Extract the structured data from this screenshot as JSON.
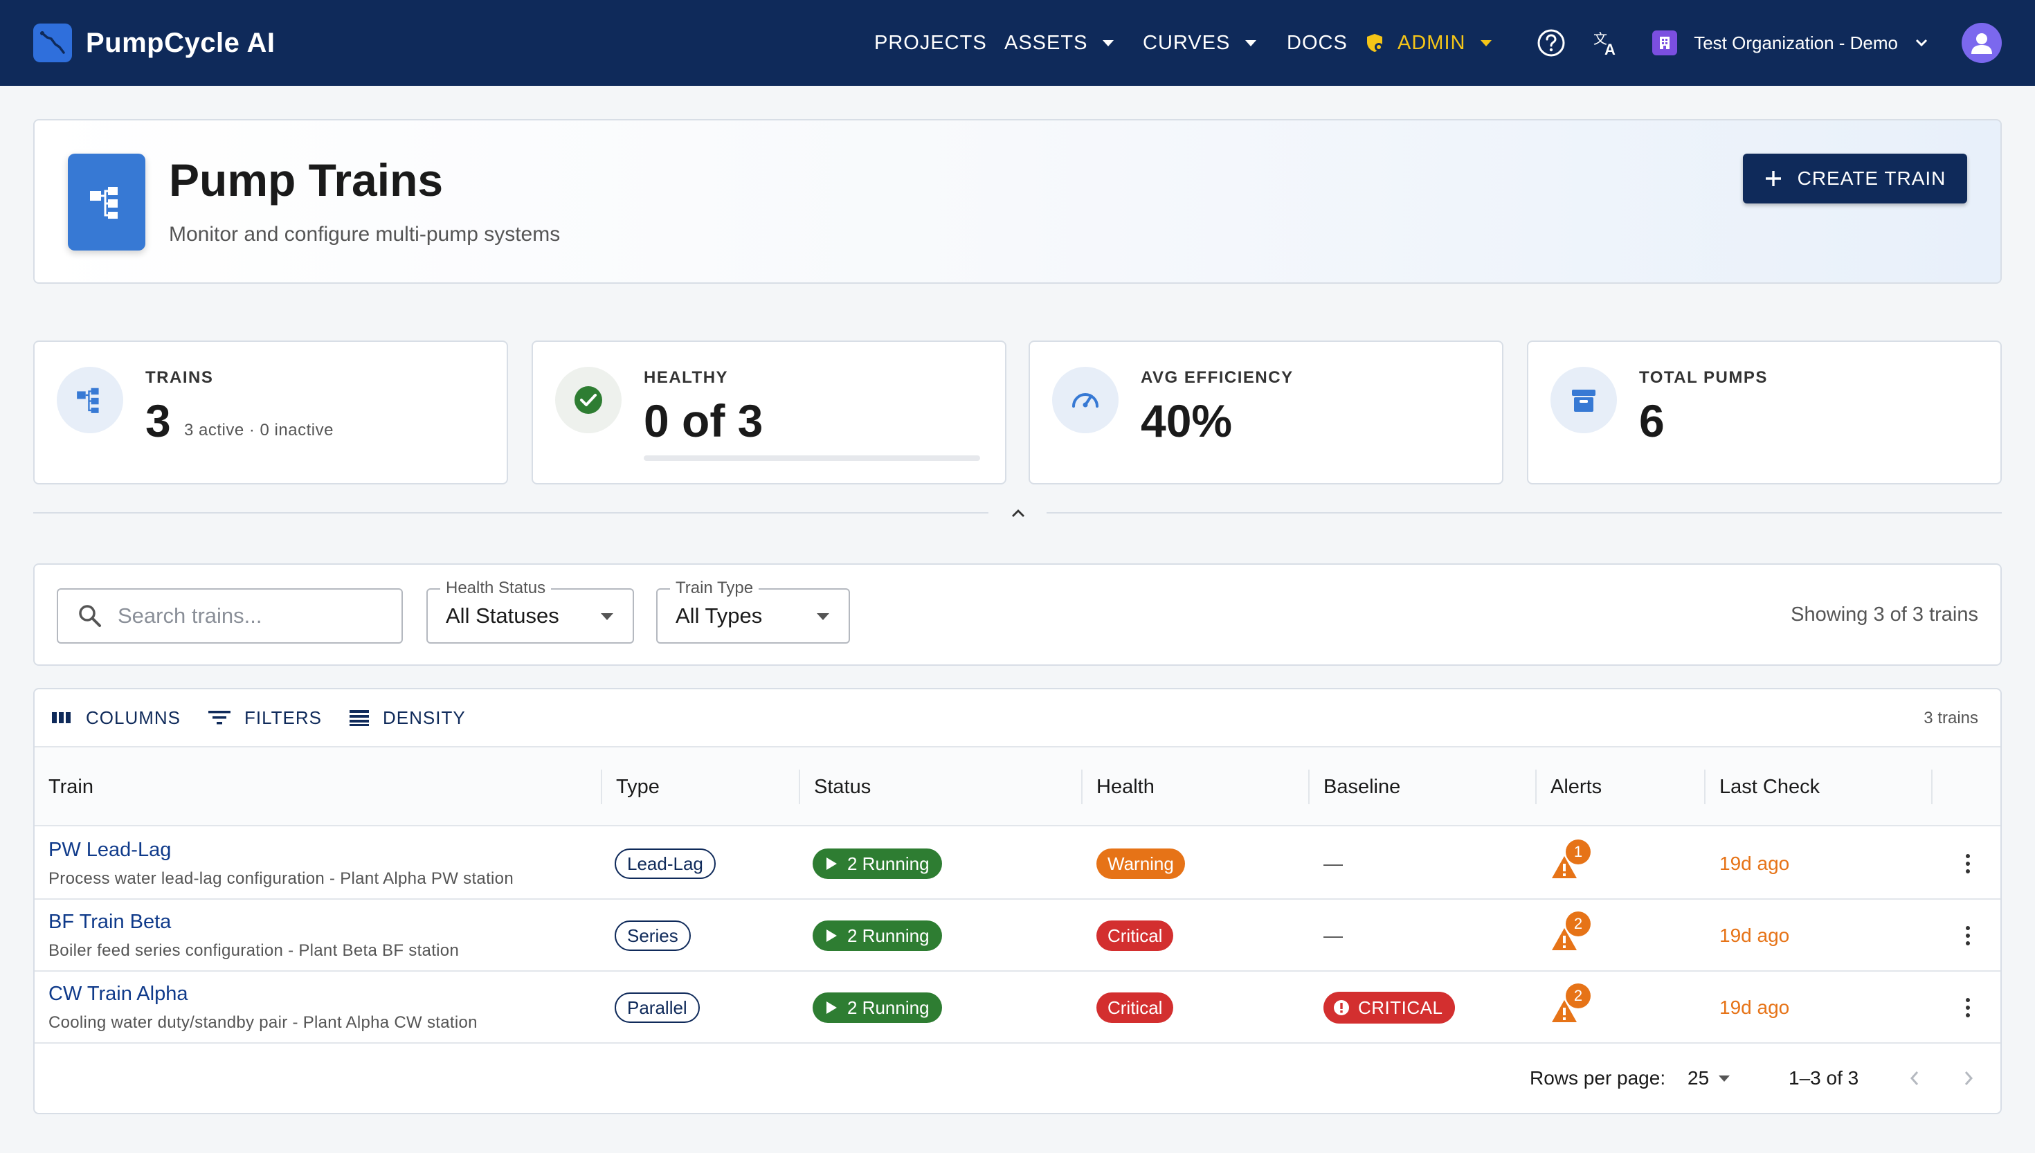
{
  "navbar": {
    "brand": "PumpCycle AI",
    "links": [
      {
        "label": "PROJECTS"
      },
      {
        "label": "ASSETS"
      },
      {
        "label": "CURVES"
      },
      {
        "label": "DOCS"
      },
      {
        "label": "ADMIN"
      }
    ],
    "organization": "Test Organization - Demo"
  },
  "header": {
    "title": "Pump Trains",
    "subtitle": "Monitor and configure multi-pump systems",
    "create_button": "CREATE TRAIN"
  },
  "stats": {
    "trains": {
      "label": "TRAINS",
      "value": "3",
      "sub": "3 active · 0 inactive"
    },
    "healthy": {
      "label": "HEALTHY",
      "value": "0 of 3",
      "fraction": 0
    },
    "efficiency": {
      "label": "AVG EFFICIENCY",
      "value": "40%"
    },
    "pumps": {
      "label": "TOTAL PUMPS",
      "value": "6"
    }
  },
  "filters": {
    "search_placeholder": "Search trains...",
    "health_label": "Health Status",
    "health_value": "All Statuses",
    "type_label": "Train Type",
    "type_value": "All Types",
    "showing": "Showing 3 of 3 trains"
  },
  "toolbar": {
    "columns": "COLUMNS",
    "filters": "FILTERS",
    "density": "DENSITY",
    "count": "3 trains"
  },
  "table": {
    "headers": {
      "train": "Train",
      "type": "Type",
      "status": "Status",
      "health": "Health",
      "baseline": "Baseline",
      "alerts": "Alerts",
      "last_check": "Last Check"
    },
    "rows": [
      {
        "name": "PW Lead-Lag",
        "desc": "Process water lead-lag configuration - Plant Alpha PW station",
        "type": "Lead-Lag",
        "status": "2 Running",
        "health": "Warning",
        "health_color": "#e67317",
        "baseline": "—",
        "alerts": "1",
        "last_check": "19d ago"
      },
      {
        "name": "BF Train Beta",
        "desc": "Boiler feed series configuration - Plant Beta BF station",
        "type": "Series",
        "status": "2 Running",
        "health": "Critical",
        "health_color": "#d32f2f",
        "baseline": "—",
        "alerts": "2",
        "last_check": "19d ago"
      },
      {
        "name": "CW Train Alpha",
        "desc": "Cooling water duty/standby pair - Plant Alpha CW station",
        "type": "Parallel",
        "status": "2 Running",
        "health": "Critical",
        "health_color": "#d32f2f",
        "baseline": "CRITICAL",
        "alerts": "2",
        "last_check": "19d ago"
      }
    ]
  },
  "pagination": {
    "rows_per_page_label": "Rows per page:",
    "rows_per_page": "25",
    "range": "1–3 of 3"
  }
}
